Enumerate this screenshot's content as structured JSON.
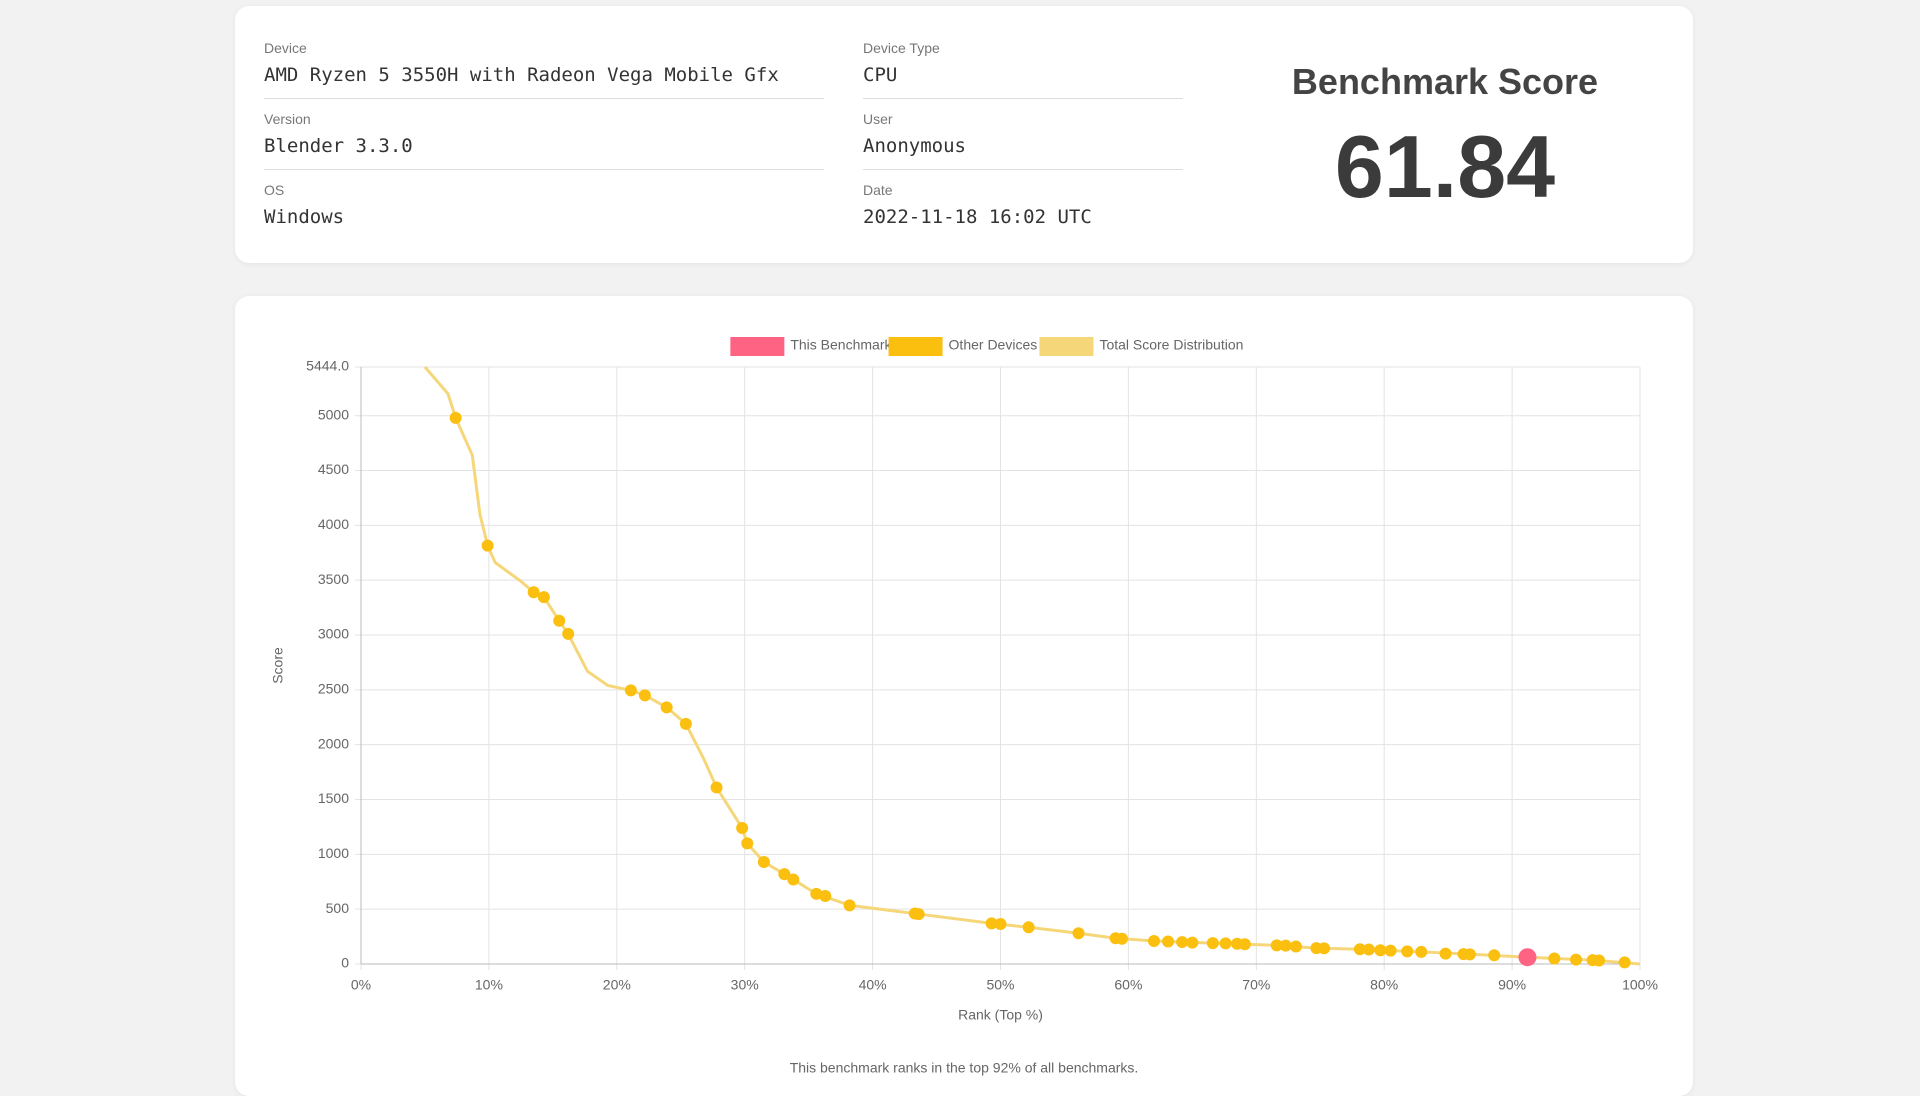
{
  "details": [
    {
      "label": "Device",
      "value": "AMD Ryzen 5 3550H with Radeon Vega Mobile Gfx"
    },
    {
      "label": "Version",
      "value": "Blender 3.3.0"
    },
    {
      "label": "OS",
      "value": "Windows"
    },
    {
      "label": "Device Type",
      "value": "CPU"
    },
    {
      "label": "User",
      "value": "Anonymous"
    },
    {
      "label": "Date",
      "value": "2022-11-18 16:02 UTC"
    }
  ],
  "score": {
    "title": "Benchmark Score",
    "value": "61.84"
  },
  "chart_data": {
    "type": "line",
    "x_label": "Rank (Top %)",
    "y_label": "Score",
    "note": "This benchmark ranks in the top 92% of all benchmarks.",
    "xlim": [
      0,
      100
    ],
    "xticks": [
      {
        "value": 0,
        "label": "0%"
      },
      {
        "value": 10,
        "label": "10%"
      },
      {
        "value": 20,
        "label": "20%"
      },
      {
        "value": 30,
        "label": "30%"
      },
      {
        "value": 40,
        "label": "40%"
      },
      {
        "value": 50,
        "label": "50%"
      },
      {
        "value": 60,
        "label": "60%"
      },
      {
        "value": 70,
        "label": "70%"
      },
      {
        "value": 80,
        "label": "80%"
      },
      {
        "value": 90,
        "label": "90%"
      },
      {
        "value": 100,
        "label": "100%"
      }
    ],
    "ylim": [
      0,
      5444
    ],
    "yticks": [
      0,
      500,
      1000,
      1500,
      2000,
      2500,
      3000,
      3500,
      4000,
      4500,
      5000,
      {
        "value": 5444,
        "label": "5444.0"
      }
    ],
    "grid": true,
    "legend": "top",
    "series": [
      {
        "name": "This Benchmark",
        "color": "#ff6384",
        "type": "scatter",
        "x": [
          91.2
        ],
        "values": [
          61.84
        ]
      },
      {
        "name": "Other Devices",
        "color": "#fbbf10",
        "type": "scatter",
        "x": [
          7.4,
          9.9,
          13.5,
          14.3,
          15.5,
          16.2,
          21.1,
          22.2,
          23.9,
          25.4,
          27.8,
          29.8,
          30.2,
          31.5,
          33.1,
          33.8,
          35.6,
          36.3,
          38.2,
          43.3,
          43.6,
          49.3,
          50.0,
          52.2,
          56.1,
          59.0,
          59.5,
          62.0,
          63.1,
          64.2,
          65.0,
          66.6,
          67.6,
          68.5,
          69.1,
          71.6,
          72.3,
          73.1,
          74.7,
          75.3,
          78.1,
          78.8,
          79.7,
          80.5,
          81.8,
          82.9,
          84.8,
          86.2,
          86.7,
          88.6,
          93.3,
          95.0,
          96.3,
          96.8,
          98.8
        ],
        "values": [
          4980,
          3815,
          3390,
          3345,
          3130,
          3010,
          2495,
          2450,
          2340,
          2190,
          1610,
          1240,
          1100,
          930,
          820,
          770,
          640,
          620,
          535,
          460,
          455,
          370,
          365,
          335,
          280,
          235,
          230,
          210,
          205,
          200,
          195,
          190,
          188,
          185,
          180,
          170,
          168,
          160,
          145,
          143,
          135,
          132,
          125,
          122,
          115,
          110,
          95,
          90,
          88,
          80,
          50,
          40,
          35,
          32,
          15
        ]
      },
      {
        "name": "Total Score Distribution",
        "color": "#f5d77a",
        "type": "line",
        "x": [
          5.0,
          6.8,
          7.4,
          8.7,
          9.3,
          9.9,
          10.5,
          12.5,
          13.5,
          14.3,
          15.5,
          16.2,
          17.7,
          19.3,
          21.1,
          22.2,
          23.9,
          25.4,
          26.8,
          27.8,
          29.8,
          30.2,
          31.5,
          33.1,
          33.8,
          35.6,
          38.2,
          43.3,
          49.3,
          52.2,
          56.1,
          59.0,
          62.0,
          66.6,
          69.1,
          71.6,
          74.7,
          78.1,
          82.9,
          86.7,
          91.2,
          96.3,
          100
        ],
        "values": [
          5444,
          5200,
          4980,
          4640,
          4100,
          3815,
          3660,
          3490,
          3390,
          3345,
          3130,
          3010,
          2670,
          2540,
          2495,
          2450,
          2340,
          2190,
          1870,
          1610,
          1240,
          1100,
          930,
          820,
          770,
          640,
          535,
          460,
          370,
          335,
          280,
          235,
          210,
          190,
          180,
          170,
          145,
          135,
          110,
          90,
          62,
          35,
          0
        ]
      }
    ]
  }
}
